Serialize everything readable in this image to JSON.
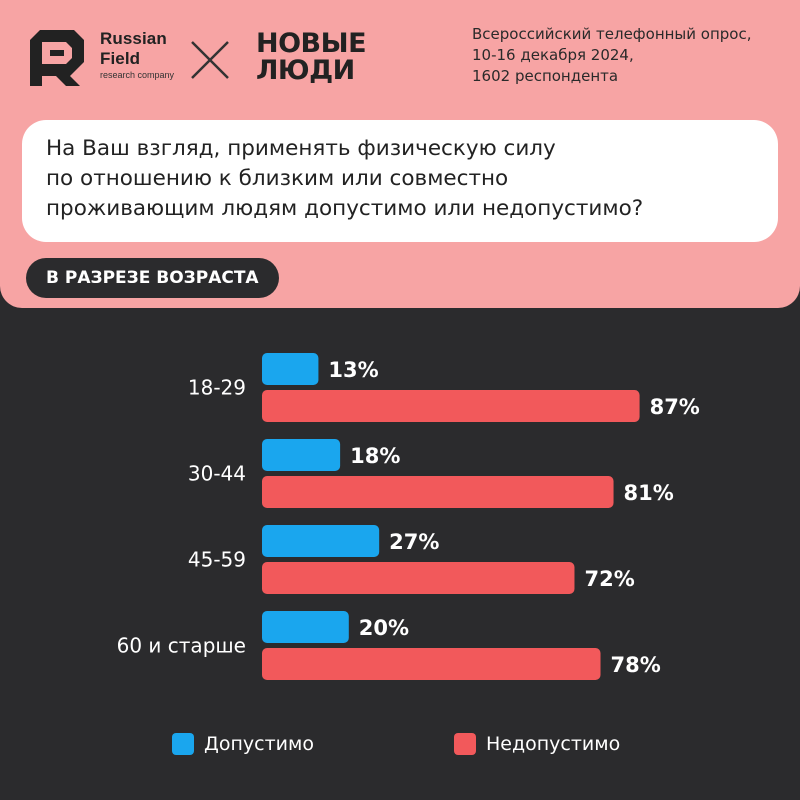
{
  "header": {
    "rf_logo": {
      "line1": "Russian",
      "line2": "Field",
      "line3": "research company"
    },
    "nl_logo": {
      "line1": "НОВЫЕ",
      "line2": "ЛЮДИ"
    },
    "survey_info": [
      "Всероссийский телефонный опрос,",
      "10-16 декабря 2024,",
      "1602 респондента"
    ]
  },
  "question": [
    "На Ваш взгляд, применять физическую силу",
    "по отношению к близким или совместно",
    "проживающим людям допустимо или недопустимо?"
  ],
  "badge": "В РАЗРЕЗЕ ВОЗРАСТА",
  "colors": {
    "top_panel": "#f7a4a4",
    "background": "#2b2b2d",
    "acceptable": "#1aa6ee",
    "unacceptable": "#f2595b"
  },
  "chart_data": {
    "type": "bar",
    "orientation": "horizontal",
    "categories": [
      "18-29",
      "30-44",
      "45-59",
      "60 и старше"
    ],
    "series": [
      {
        "name": "Допустимо",
        "values": [
          13,
          18,
          27,
          20
        ],
        "labels": [
          "13%",
          "18%",
          "27%",
          "20%"
        ]
      },
      {
        "name": "Недопустимо",
        "values": [
          87,
          81,
          72,
          78
        ],
        "labels": [
          "87%",
          "81%",
          "72%",
          "78%"
        ]
      }
    ],
    "unit": "%",
    "legend_position": "bottom"
  }
}
